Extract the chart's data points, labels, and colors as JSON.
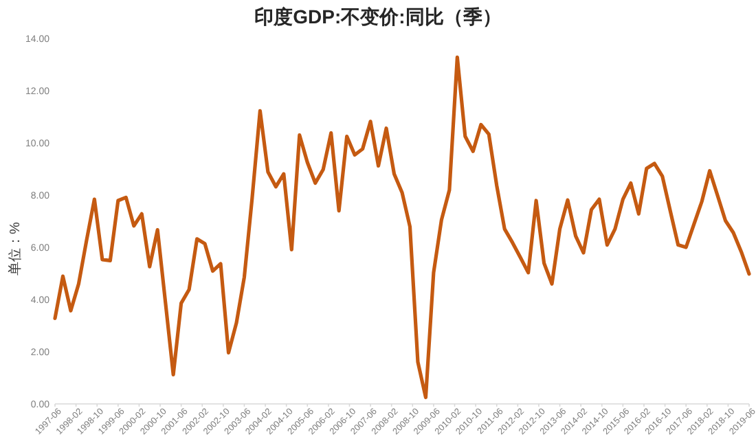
{
  "chart_data": {
    "type": "line",
    "title": "印度GDP:不变价:同比（季）",
    "ylabel": "单位：%",
    "x": [
      "1997-06",
      "1997-09",
      "1997-12",
      "1998-03",
      "1998-06",
      "1998-09",
      "1998-12",
      "1999-03",
      "1999-06",
      "1999-09",
      "1999-12",
      "2000-03",
      "2000-06",
      "2000-09",
      "2000-12",
      "2001-03",
      "2001-06",
      "2001-09",
      "2001-12",
      "2002-03",
      "2002-06",
      "2002-09",
      "2002-12",
      "2003-03",
      "2003-06",
      "2003-09",
      "2003-12",
      "2004-03",
      "2004-06",
      "2004-09",
      "2004-12",
      "2005-03",
      "2005-06",
      "2005-09",
      "2005-12",
      "2006-03",
      "2006-06",
      "2006-09",
      "2006-12",
      "2007-03",
      "2007-06",
      "2007-09",
      "2007-12",
      "2008-03",
      "2008-06",
      "2008-09",
      "2008-12",
      "2009-03",
      "2009-06",
      "2009-09",
      "2009-12",
      "2010-03",
      "2010-06",
      "2010-09",
      "2010-12",
      "2011-03",
      "2011-06",
      "2011-09",
      "2011-12",
      "2012-03",
      "2012-06",
      "2012-09",
      "2012-12",
      "2013-03",
      "2013-06",
      "2013-09",
      "2013-12",
      "2014-03",
      "2014-06",
      "2014-09",
      "2014-12",
      "2015-03",
      "2015-06",
      "2015-09",
      "2015-12",
      "2016-03",
      "2016-06",
      "2016-09",
      "2016-12",
      "2017-03",
      "2017-06",
      "2017-09",
      "2017-12",
      "2018-03",
      "2018-06",
      "2018-09",
      "2018-12",
      "2019-03",
      "2019-06"
    ],
    "series": [
      {
        "color": "#c55a11",
        "values": [
          3.28,
          4.89,
          3.57,
          4.6,
          6.26,
          7.84,
          5.53,
          5.49,
          7.79,
          7.91,
          6.82,
          7.28,
          5.26,
          6.67,
          3.9,
          1.12,
          3.86,
          4.38,
          6.32,
          6.14,
          5.09,
          5.37,
          1.96,
          3.1,
          4.86,
          7.9,
          11.23,
          8.89,
          8.32,
          8.81,
          5.91,
          10.3,
          9.25,
          8.46,
          8.98,
          10.38,
          7.4,
          10.25,
          9.54,
          9.77,
          10.82,
          9.12,
          10.56,
          8.81,
          8.1,
          6.79,
          1.61,
          0.25,
          5.03,
          7.05,
          8.19,
          13.28,
          10.25,
          9.68,
          10.7,
          10.33,
          8.37,
          6.7,
          6.18,
          5.61,
          5.03,
          7.79,
          5.39,
          4.6,
          6.7,
          7.81,
          6.44,
          5.79,
          7.44,
          7.84,
          6.09,
          6.7,
          7.84,
          8.46,
          7.28,
          9.02,
          9.21,
          8.72,
          7.4,
          6.09,
          6.0,
          6.88,
          7.75,
          8.93,
          7.98,
          7.02,
          6.56,
          5.83,
          4.98
        ]
      }
    ],
    "xlim": [
      "1997-06",
      "2019-06"
    ],
    "xticks": [
      "1997-06",
      "1998-02",
      "1998-10",
      "1999-06",
      "2000-02",
      "2000-10",
      "2001-06",
      "2002-02",
      "2002-10",
      "2003-06",
      "2004-02",
      "2004-10",
      "2005-06",
      "2006-02",
      "2006-10",
      "2007-06",
      "2008-02",
      "2008-10",
      "2009-06",
      "2010-02",
      "2010-10",
      "2011-06",
      "2012-02",
      "2012-10",
      "2013-06",
      "2014-02",
      "2014-10",
      "2015-06",
      "2016-02",
      "2016-10",
      "2017-06",
      "2018-02",
      "2018-10",
      "2019-06"
    ],
    "ylim": [
      0,
      14
    ],
    "yticks": [
      {
        "value": 0,
        "label": "0.00"
      },
      {
        "value": 2,
        "label": "2.00"
      },
      {
        "value": 4,
        "label": "4.00"
      },
      {
        "value": 6,
        "label": "6.00"
      },
      {
        "value": 8,
        "label": "8.00"
      },
      {
        "value": 10,
        "label": "10.00"
      },
      {
        "value": 12,
        "label": "12.00"
      },
      {
        "value": 14,
        "label": "14.00"
      }
    ],
    "grid": false
  }
}
